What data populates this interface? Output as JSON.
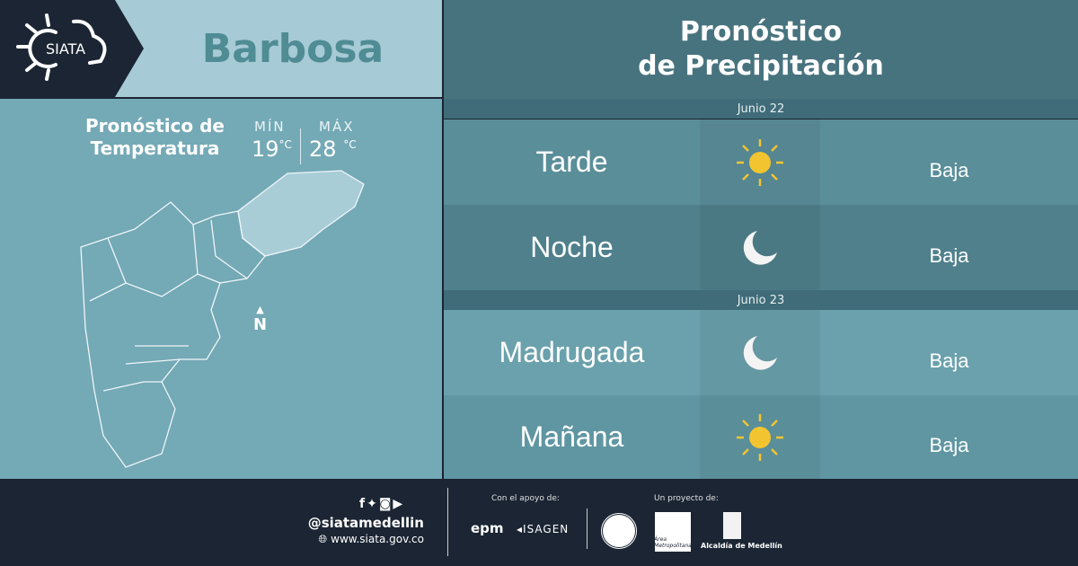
{
  "header": {
    "logo_text": "SIATA",
    "city": "Barbosa"
  },
  "temperature": {
    "title_line1": "Pronóstico de",
    "title_line2": "Temperatura",
    "min_label": "MÍN",
    "min_value": "19",
    "max_label": "MÁX",
    "max_value": "28",
    "unit": "°C"
  },
  "map": {
    "north_label": "N"
  },
  "precipitation": {
    "title_line1": "Pronóstico",
    "title_line2": "de Precipitación",
    "days": [
      {
        "date": "Junio 22",
        "periods": [
          {
            "name": "Tarde",
            "icon": "sun-icon",
            "level": "Baja"
          },
          {
            "name": "Noche",
            "icon": "moon-icon",
            "level": "Baja"
          }
        ]
      },
      {
        "date": "Junio 23",
        "periods": [
          {
            "name": "Madrugada",
            "icon": "moon-icon",
            "level": "Baja"
          },
          {
            "name": "Mañana",
            "icon": "sun-icon",
            "level": "Baja"
          }
        ]
      }
    ]
  },
  "footer": {
    "handle": "@siatamedellin",
    "website": "www.siata.gov.co",
    "support_label": "Con el apoyo de:",
    "support_logos": [
      "epm",
      "ISAGEN"
    ],
    "project_label": "Un proyecto de:",
    "project_logos": [
      "Área Metropolitana",
      "Alcaldía de Medellín"
    ]
  },
  "colors": {
    "navy": "#1b2533",
    "header": "#a6cad6",
    "panel": "#74a9b6",
    "sun": "#f2c530"
  }
}
